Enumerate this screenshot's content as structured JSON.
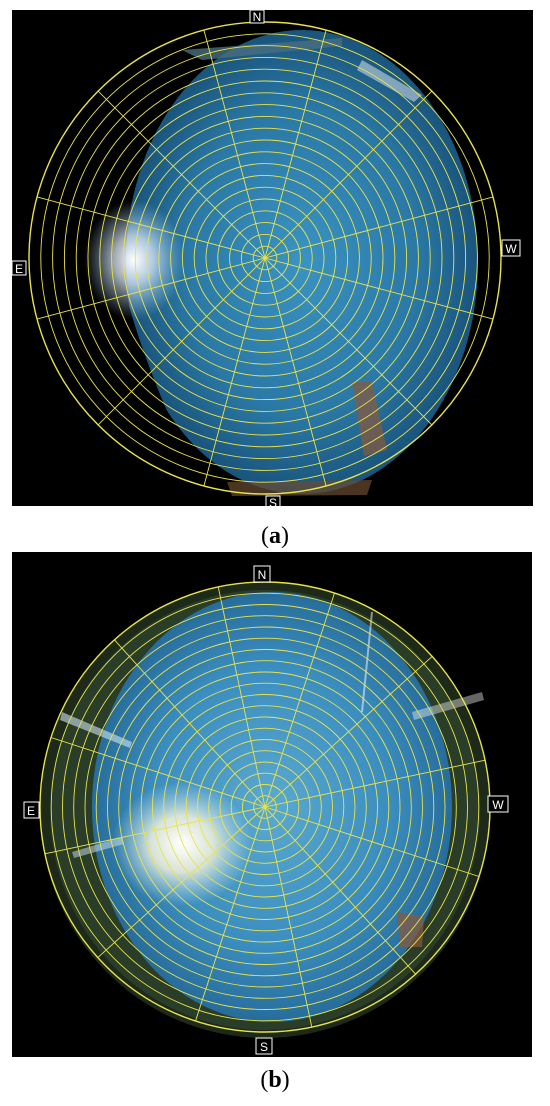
{
  "panels": [
    {
      "id": "a",
      "caption_open": "(",
      "caption_letter": "a",
      "caption_close": ")",
      "directions": {
        "north": "N",
        "south": "S",
        "east": "E",
        "west": "W"
      }
    },
    {
      "id": "b",
      "caption_open": "(",
      "caption_letter": "b",
      "caption_close": ")",
      "directions": {
        "north": "N",
        "south": "S",
        "east": "E",
        "west": "W"
      }
    }
  ],
  "colors": {
    "grid": "#e9e34a",
    "sky_center": "#2f84b4",
    "sky_edge": "#0d3c5e",
    "background": "#000000"
  },
  "icons": [
    "sun-glare",
    "fisheye-sky",
    "polar-grid"
  ]
}
